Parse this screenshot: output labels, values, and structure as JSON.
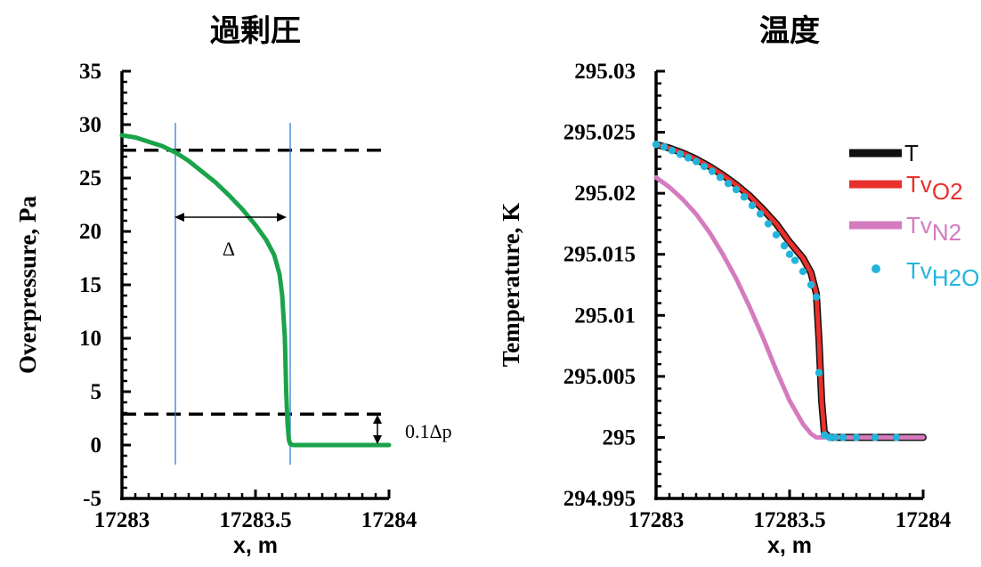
{
  "chart_data": [
    {
      "type": "line",
      "title": "過剰圧",
      "xlabel": "x, m",
      "ylabel": "Overpressure, Pa",
      "xlim": [
        17283,
        17284
      ],
      "ylim": [
        -5,
        35
      ],
      "xticks": [
        "17283",
        "17283.5",
        "17284"
      ],
      "yticks": [
        "-5",
        "0",
        "5",
        "10",
        "15",
        "20",
        "25",
        "30",
        "35"
      ],
      "series": [
        {
          "color": "#1aa34a",
          "x": [
            17283,
            17283.05,
            17283.1,
            17283.15,
            17283.2,
            17283.25,
            17283.3,
            17283.35,
            17283.4,
            17283.45,
            17283.5,
            17283.54,
            17283.57,
            17283.59,
            17283.6,
            17283.61,
            17283.615,
            17283.62,
            17283.625,
            17283.63,
            17283.64,
            17283.66,
            17283.7,
            17283.8,
            17283.9,
            17284
          ],
          "y": [
            29,
            28.8,
            28.4,
            28.0,
            27.4,
            26.6,
            25.6,
            24.6,
            23.4,
            22.1,
            20.6,
            19.2,
            17.8,
            16.0,
            14.0,
            10.0,
            5.0,
            2.0,
            0.5,
            0.1,
            0,
            0,
            0,
            0,
            0,
            0
          ]
        }
      ],
      "reference_lines": {
        "horizontal": [
          27.6,
          2.9
        ],
        "vertical": [
          17283.2,
          17283.63
        ]
      },
      "annotations": [
        "Δ",
        "0.1Δp"
      ],
      "grid": false
    },
    {
      "type": "line",
      "title": "温度",
      "xlabel": "x, m",
      "ylabel": "Temperature, K",
      "xlim": [
        17283,
        17284
      ],
      "ylim": [
        294.995,
        295.03
      ],
      "xticks": [
        "17283",
        "17283.5",
        "17284"
      ],
      "yticks": [
        "294.995",
        "295",
        "295.005",
        "295.01",
        "295.015",
        "295.02",
        "295.025",
        "295.03"
      ],
      "legend_position": "right",
      "series": [
        {
          "name": "T",
          "color": "#111111",
          "style": "line",
          "x": [
            17283,
            17283.05,
            17283.1,
            17283.15,
            17283.2,
            17283.25,
            17283.3,
            17283.35,
            17283.4,
            17283.45,
            17283.5,
            17283.55,
            17283.58,
            17283.6,
            17283.61,
            17283.62,
            17283.63,
            17283.65,
            17283.7,
            17283.8,
            17283.9,
            17284
          ],
          "y": [
            295.024,
            295.0237,
            295.0233,
            295.0228,
            295.0222,
            295.0215,
            295.0207,
            295.0198,
            295.0187,
            295.0175,
            295.016,
            295.0147,
            295.0135,
            295.0118,
            295.008,
            295.003,
            295.0004,
            295.0,
            295.0,
            295.0,
            295.0,
            295.0
          ]
        },
        {
          "name": "Tv",
          "sub": "O2",
          "color": "#e8302c",
          "style": "line",
          "x": [
            17283,
            17283.05,
            17283.1,
            17283.15,
            17283.2,
            17283.25,
            17283.3,
            17283.35,
            17283.4,
            17283.45,
            17283.5,
            17283.55,
            17283.58,
            17283.6,
            17283.61,
            17283.62,
            17283.63,
            17283.65,
            17283.7,
            17283.8,
            17283.9,
            17284
          ],
          "y": [
            295.024,
            295.0237,
            295.0233,
            295.0228,
            295.0222,
            295.0215,
            295.0207,
            295.0198,
            295.0187,
            295.0175,
            295.016,
            295.0147,
            295.0135,
            295.0118,
            295.008,
            295.003,
            295.0004,
            295.0,
            295.0,
            295.0,
            295.0,
            295.0
          ]
        },
        {
          "name": "Tv",
          "sub": "N2",
          "color": "#d47bbf",
          "style": "line",
          "x": [
            17283,
            17283.05,
            17283.1,
            17283.15,
            17283.2,
            17283.25,
            17283.3,
            17283.35,
            17283.4,
            17283.45,
            17283.5,
            17283.55,
            17283.58,
            17283.6,
            17283.62,
            17283.7,
            17283.8,
            17283.9,
            17284
          ],
          "y": [
            295.0213,
            295.0205,
            295.0195,
            295.0183,
            295.0168,
            295.015,
            295.013,
            295.0107,
            295.0082,
            295.0055,
            295.003,
            295.0011,
            295.0003,
            295.0,
            295.0,
            295.0,
            295.0,
            295.0,
            295.0
          ]
        },
        {
          "name": "Tv",
          "sub": "H2O",
          "color": "#22b5dc",
          "style": "markers",
          "x": [
            17283,
            17283.03,
            17283.06,
            17283.09,
            17283.12,
            17283.15,
            17283.18,
            17283.21,
            17283.24,
            17283.27,
            17283.3,
            17283.33,
            17283.36,
            17283.39,
            17283.42,
            17283.45,
            17283.48,
            17283.5,
            17283.52,
            17283.55,
            17283.58,
            17283.6,
            17283.61,
            17283.63,
            17283.65,
            17283.67,
            17283.7,
            17283.75,
            17283.82,
            17283.9
          ],
          "y": [
            295.024,
            295.0238,
            295.0235,
            295.0232,
            295.0229,
            295.0226,
            295.0222,
            295.0218,
            295.0213,
            295.0208,
            295.0203,
            295.0197,
            295.019,
            295.0183,
            295.0175,
            295.0166,
            295.0157,
            295.015,
            295.0145,
            295.0136,
            295.0125,
            295.0115,
            295.0053,
            295.0002,
            295.0,
            295.0,
            295.0,
            295.0,
            295.0,
            295.0
          ]
        }
      ],
      "grid": false
    }
  ]
}
